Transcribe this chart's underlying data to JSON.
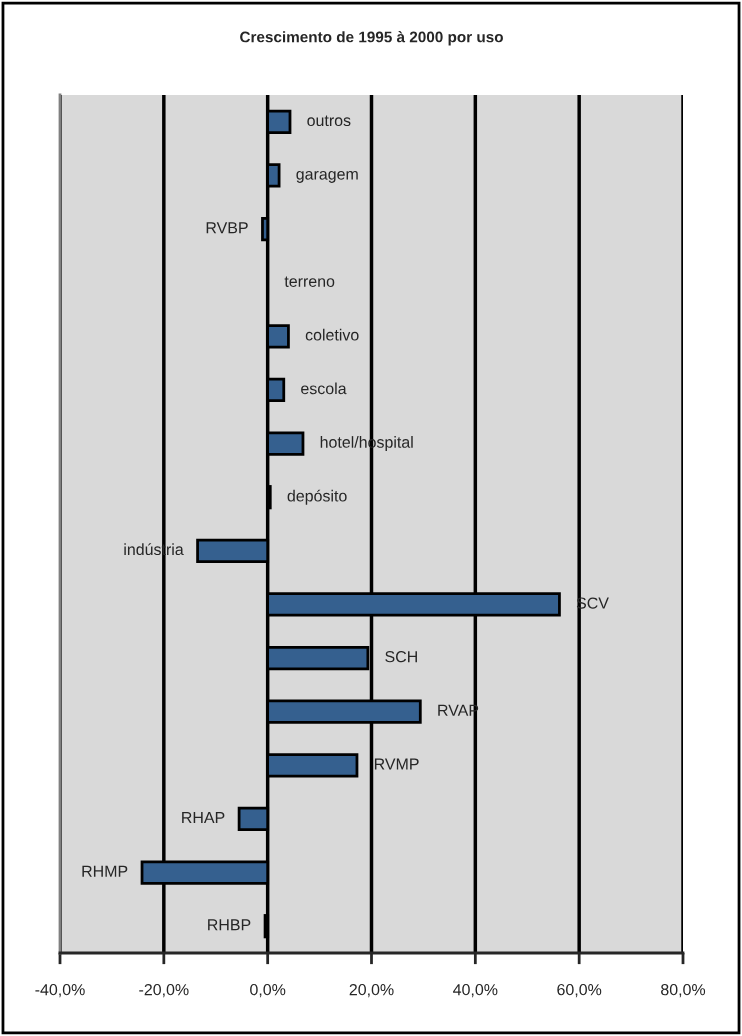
{
  "chart_data": {
    "type": "bar",
    "orientation": "horizontal",
    "title": "Crescimento de 1995 à 2000 por uso",
    "categories": [
      "outros",
      "garagem",
      "RVBP",
      "terreno",
      "coletivo",
      "escola",
      "hotel/hospital",
      "depósito",
      "indústria",
      "SCV",
      "SCH",
      "RVAP",
      "RVMP",
      "RHAP",
      "RHMP",
      "RHBP"
    ],
    "values": [
      4.3,
      2.2,
      -1.0,
      0,
      4.0,
      3.1,
      6.8,
      0.5,
      -13.5,
      56.2,
      19.3,
      29.4,
      17.2,
      -5.5,
      -24.2,
      -0.5
    ],
    "color": "#35608f",
    "xlim": [
      -40,
      80
    ],
    "xticks": [
      {
        "value": -40,
        "label": "-40,0%"
      },
      {
        "value": -20,
        "label": "-20,0%"
      },
      {
        "value": 0,
        "label": "0,0%"
      },
      {
        "value": 20,
        "label": "20,0%"
      },
      {
        "value": 40,
        "label": "40,0%"
      },
      {
        "value": 60,
        "label": "60,0%"
      },
      {
        "value": 80,
        "label": "80,0%"
      }
    ],
    "grid": "x",
    "tick_labels": "x"
  }
}
